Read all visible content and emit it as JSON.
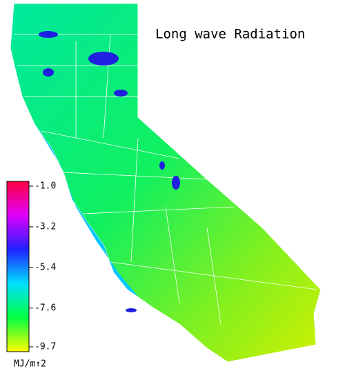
{
  "title": "Long wave Radiation",
  "colorbar": {
    "ticks": [
      {
        "value": -1.0,
        "label": "-1.0"
      },
      -3.2,
      -5.4,
      -7.6,
      -9.7
    ],
    "colors": [
      "#ff0040",
      "#e000ff",
      "#2020ff",
      "#00e0ff",
      "#00ff40",
      "#ffff00"
    ],
    "unit": "MJ/m↑2"
  }
}
